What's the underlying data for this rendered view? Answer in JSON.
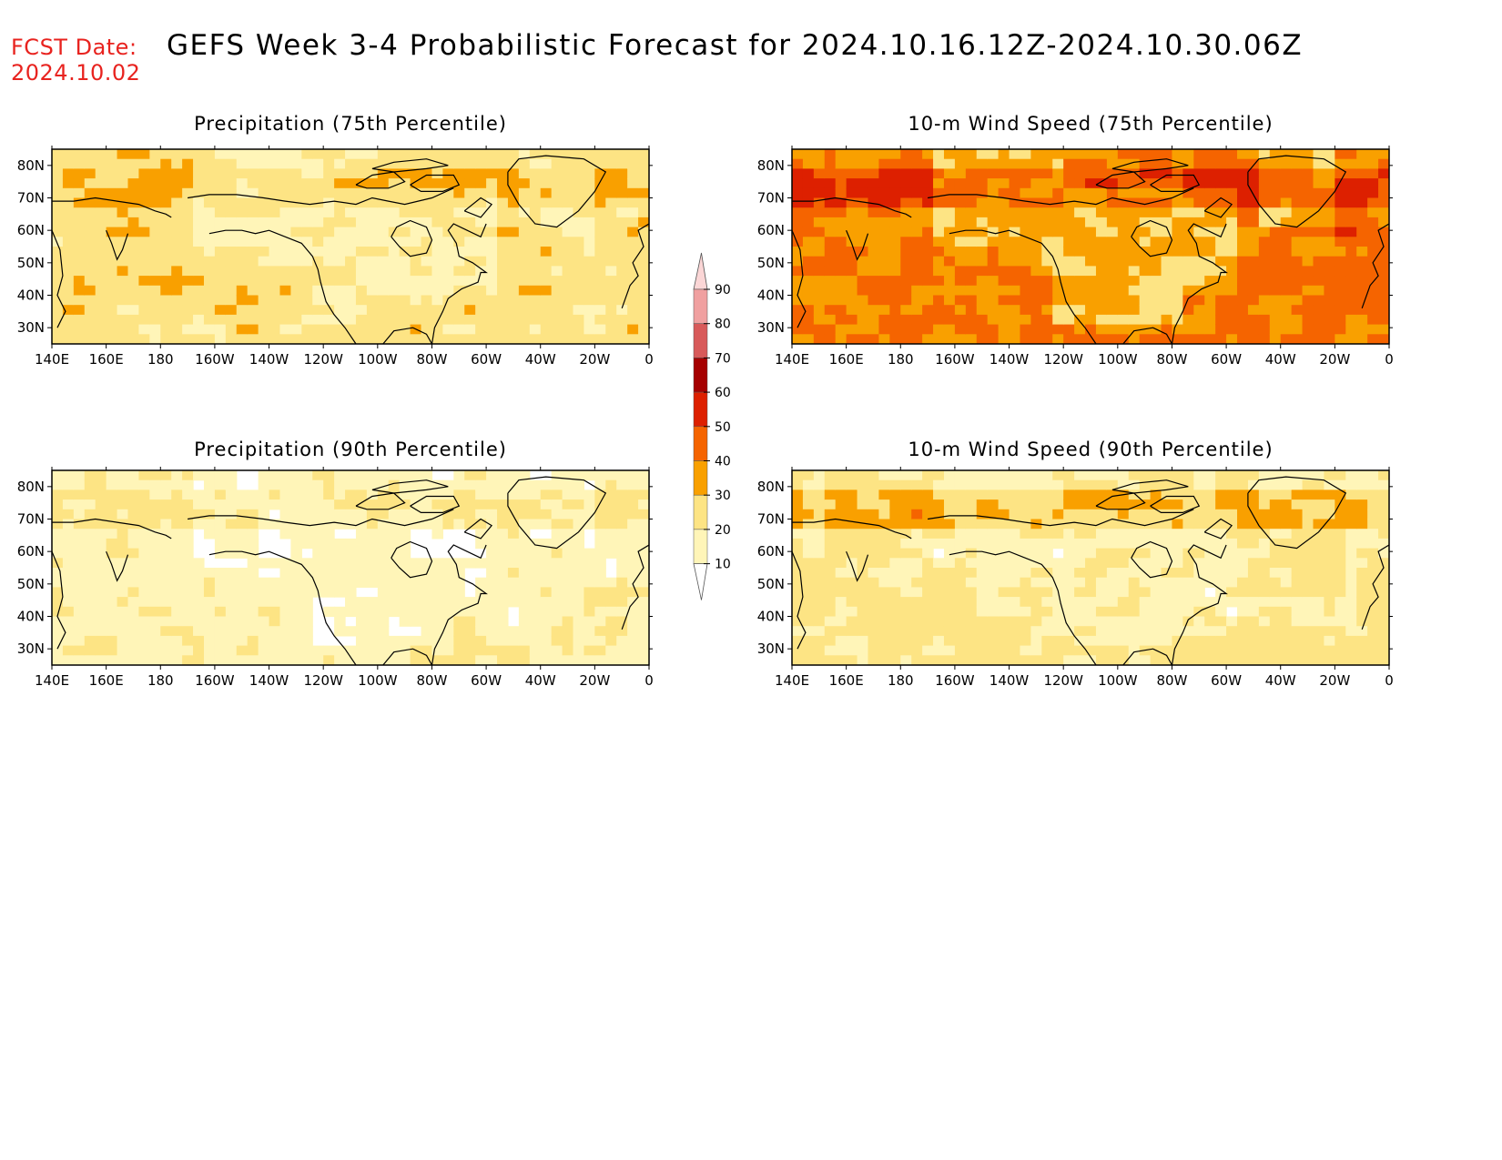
{
  "header": {
    "fcst_label": "FCST Date:",
    "fcst_date": "2024.10.02",
    "title": "GEFS Week 3-4 Probabilistic Forecast for 2024.10.16.12Z-2024.10.30.06Z"
  },
  "panels": [
    {
      "id": "precip75",
      "title": "Precipitation (75th Percentile)",
      "intensity": 1
    },
    {
      "id": "wind75",
      "title": "10-m Wind Speed (75th Percentile)",
      "intensity": 3
    },
    {
      "id": "precip90",
      "title": "Precipitation (90th Percentile)",
      "intensity": 0
    },
    {
      "id": "wind90",
      "title": "10-m Wind Speed (90th Percentile)",
      "intensity": 2
    }
  ],
  "lon_labels": [
    "140E",
    "160E",
    "180",
    "160W",
    "140W",
    "120W",
    "100W",
    "80W",
    "60W",
    "40W",
    "20W",
    "0"
  ],
  "lat_labels": [
    "80N",
    "70N",
    "60N",
    "50N",
    "40N",
    "30N"
  ],
  "colorbar": {
    "levels": [
      "10",
      "20",
      "30",
      "40",
      "50",
      "60",
      "70",
      "80",
      "90"
    ],
    "colors": [
      "#ffffff",
      "#fff5b8",
      "#fde484",
      "#f9a000",
      "#f56400",
      "#dd2000",
      "#a50000",
      "#d85a5a",
      "#f0a0a0",
      "#fbd6d6"
    ]
  }
}
